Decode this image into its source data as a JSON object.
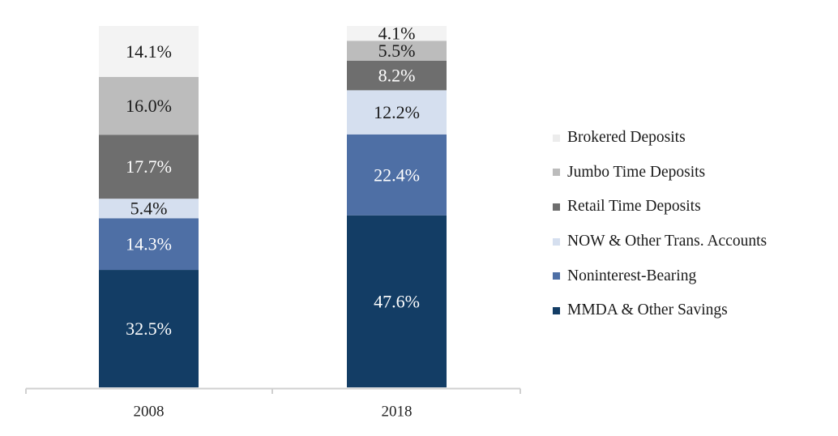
{
  "chart_data": {
    "type": "bar",
    "stacked": true,
    "normalized_percent": true,
    "categories": [
      "2008",
      "2018"
    ],
    "series": [
      {
        "name": "MMDA & Other Savings",
        "color": "#133d65",
        "label_color": "#ffffff",
        "values": [
          32.5,
          47.6
        ],
        "labels": [
          "32.5%",
          "47.6%"
        ]
      },
      {
        "name": "Noninterest-Bearing",
        "color": "#4e6fa5",
        "label_color": "#ffffff",
        "values": [
          14.3,
          22.4
        ],
        "labels": [
          "14.3%",
          "22.4%"
        ]
      },
      {
        "name": "NOW & Other Trans. Accounts",
        "color": "#d5dfef",
        "label_color": "#1a1a1a",
        "values": [
          5.4,
          12.2
        ],
        "labels": [
          "5.4%",
          "12.2%"
        ]
      },
      {
        "name": "Retail Time Deposits",
        "color": "#6e6e6e",
        "label_color": "#ffffff",
        "values": [
          17.7,
          8.2
        ],
        "labels": [
          "17.7%",
          "8.2%"
        ]
      },
      {
        "name": "Jumbo Time Deposits",
        "color": "#bcbcbc",
        "label_color": "#1a1a1a",
        "values": [
          16.0,
          5.5
        ],
        "labels": [
          "16.0%",
          "5.5%"
        ]
      },
      {
        "name": "Brokered Deposits",
        "color": "#f3f3f3",
        "label_color": "#1a1a1a",
        "values": [
          14.1,
          4.1
        ],
        "labels": [
          "14.1%",
          "4.1%"
        ]
      }
    ],
    "legend_position": "right",
    "legend_order": [
      "Brokered Deposits",
      "Jumbo Time Deposits",
      "Retail Time Deposits",
      "NOW & Other Trans. Accounts",
      "Noninterest-Bearing",
      "MMDA & Other Savings"
    ],
    "grid": false,
    "axis_color": "#d0d0d0"
  }
}
